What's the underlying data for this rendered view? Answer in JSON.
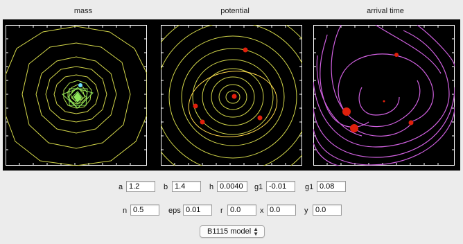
{
  "panels": {
    "mass_title": "mass",
    "potential_title": "potential",
    "arrival_title": "arrival time"
  },
  "colors": {
    "contour_yellow": "#d4d84a",
    "contour_green": "#8fe65a",
    "contour_magenta": "#d060e0",
    "image_red": "#e0200c",
    "lens_center_cyan": "#6fe0ff",
    "plot_background": "#000000"
  },
  "params": {
    "a_label": "a",
    "a_value": "1.2",
    "b_label": "b",
    "b_value": "1.4",
    "h_label": "h",
    "h_value": "0.0040",
    "g1_label": "g1",
    "g1_value": "-0.01",
    "g1b_label": "g1",
    "g1b_value": "0.08",
    "n_label": "n",
    "n_value": "0.5",
    "eps_label": "eps",
    "eps_value": "0.01",
    "r_label": "r",
    "r_value": "0.0",
    "x_label": "x",
    "x_value": "0.0",
    "y_label": "y",
    "y_value": "0.0"
  },
  "model_select": {
    "selected": "B1115 model"
  }
}
